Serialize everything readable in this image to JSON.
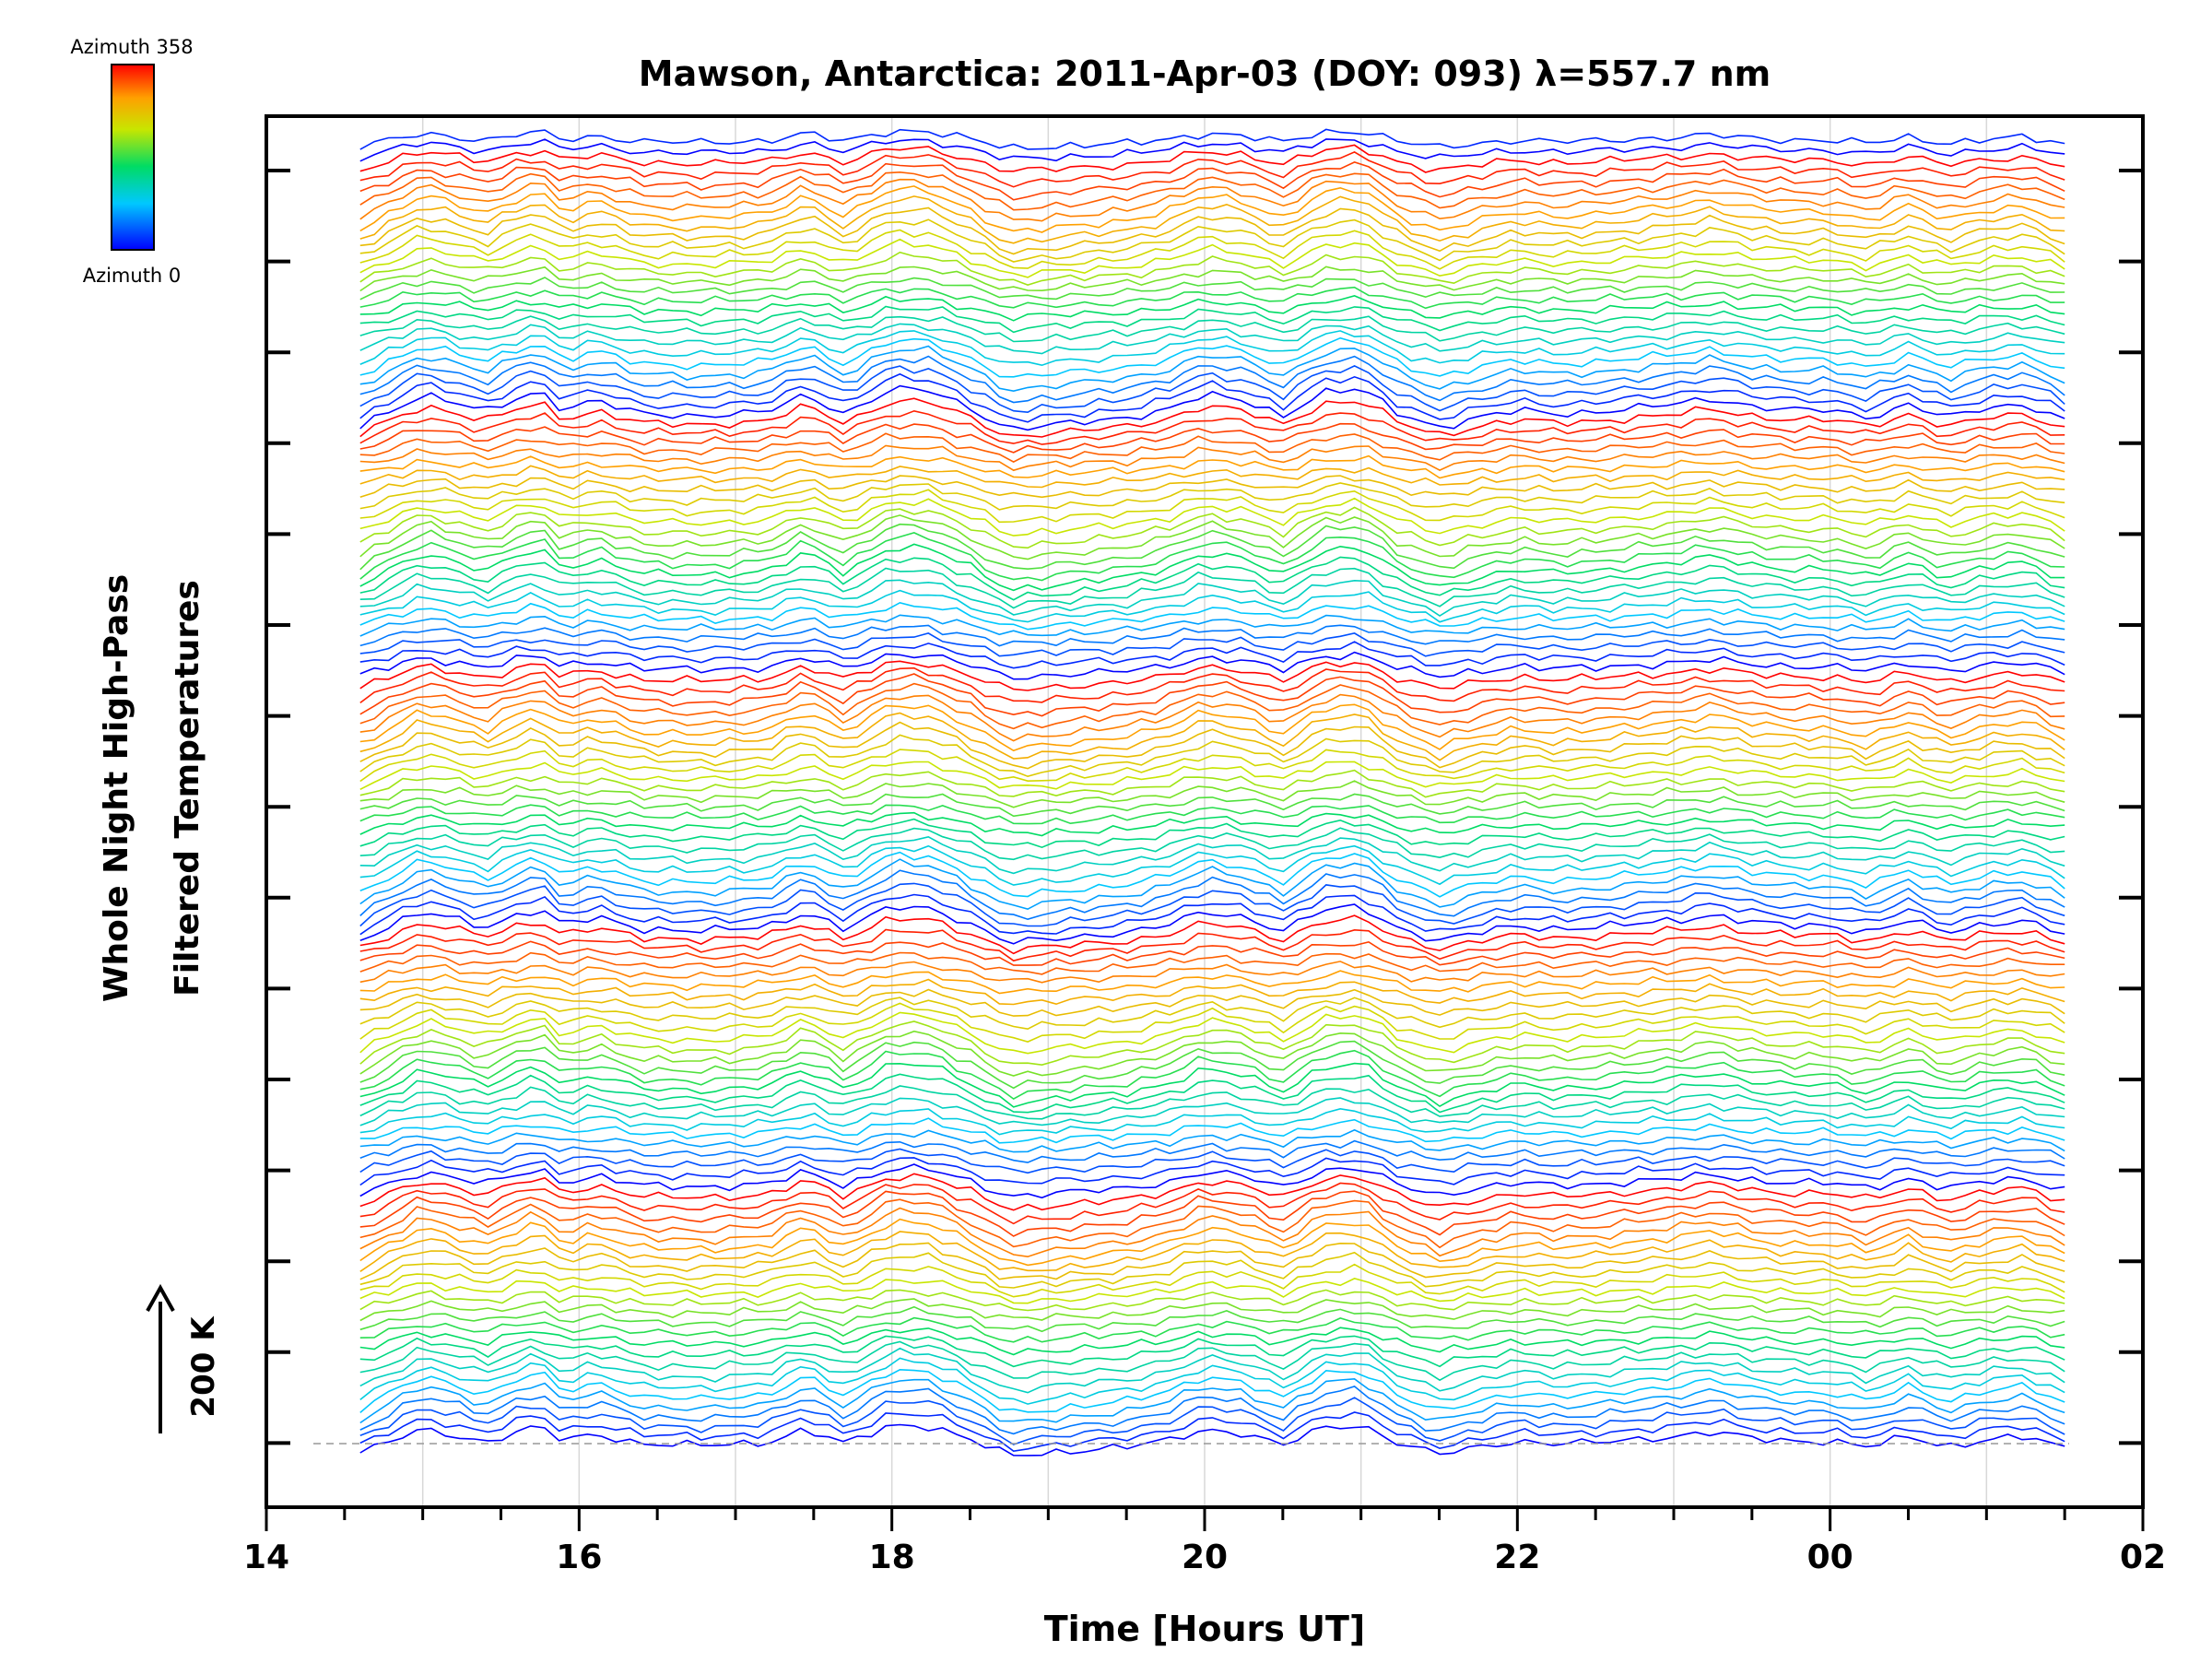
{
  "chart_data": {
    "type": "line",
    "title": "Mawson, Antarctica: 2011-Apr-03 (DOY: 093) λ=557.7 nm",
    "xlabel": "Time [Hours UT]",
    "ylabel_line1": "Whole Night High-Pass",
    "ylabel_line2": "Filtered Temperatures",
    "scale_label": "200 K",
    "x_ticks": [
      "14",
      "16",
      "18",
      "20",
      "22",
      "00",
      "02"
    ],
    "xlim": [
      14,
      26
    ],
    "x_range_data": [
      14.6,
      25.5
    ],
    "grid": true,
    "colorbar": {
      "label_top": "Azimuth  358",
      "label_bottom": "Azimuth  0",
      "colors": [
        "#0000ff",
        "#00c8ff",
        "#00dc64",
        "#c8e600",
        "#ffa000",
        "#ff0000"
      ]
    },
    "legend_position": "top-left",
    "series_count": 132,
    "stack_offset_per_trace": "stacked traces, one per azimuth, offset vertically",
    "base_profile": {
      "x": [
        14.6,
        14.8,
        15.0,
        15.2,
        15.4,
        15.6,
        15.75,
        15.9,
        16.1,
        16.4,
        16.8,
        17.2,
        17.45,
        17.7,
        18.0,
        18.25,
        18.5,
        18.75,
        19.0,
        19.25,
        19.5,
        19.75,
        20.0,
        20.25,
        20.5,
        20.75,
        21.0,
        21.25,
        21.5,
        21.75,
        22.0,
        22.25,
        22.5,
        22.75,
        23.0,
        23.25,
        23.5,
        23.75,
        24.0,
        24.25,
        24.5,
        24.75,
        25.0,
        25.25,
        25.5
      ],
      "relative_temperature": [
        -100,
        -20,
        60,
        20,
        -30,
        40,
        80,
        -20,
        30,
        -40,
        -50,
        -30,
        60,
        -40,
        90,
        80,
        -10,
        -120,
        -100,
        -80,
        -60,
        -20,
        60,
        30,
        -50,
        70,
        90,
        -40,
        -110,
        -60,
        -20,
        -40,
        -30,
        -10,
        10,
        40,
        0,
        -20,
        -20,
        -60,
        10,
        -60,
        -10,
        10,
        -70
      ]
    }
  }
}
